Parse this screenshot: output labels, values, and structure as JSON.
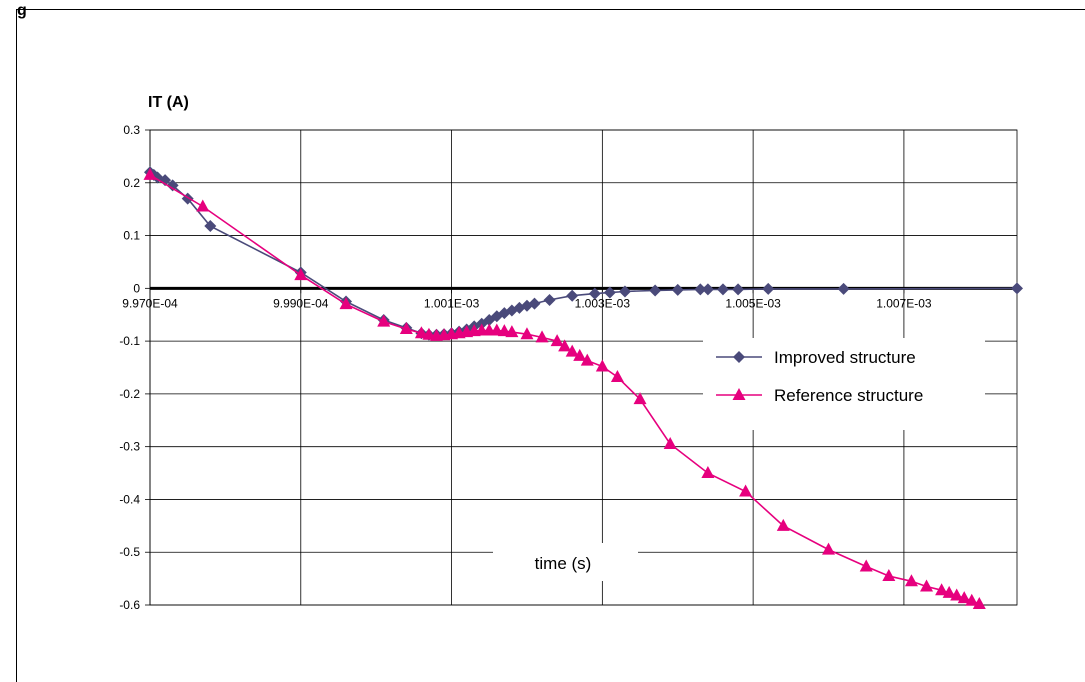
{
  "figure_label": "g",
  "chart_data": {
    "type": "scatter",
    "title": "",
    "ylabel": "IT (A)",
    "xlabel": "time (s)",
    "xlim": [
      0.000997,
      0.0010085
    ],
    "ylim": [
      -0.6,
      0.3
    ],
    "x_ticks": [
      0.000997,
      0.000999,
      0.001001,
      0.001003,
      0.001005,
      0.001007
    ],
    "x_tick_labels": [
      "9.970E-04",
      "9.990E-04",
      "1.001E-03",
      "1.003E-03",
      "1.005E-03",
      "1.007E-03"
    ],
    "y_ticks": [
      0.3,
      0.2,
      0.1,
      0,
      -0.1,
      -0.2,
      -0.3,
      -0.4,
      -0.5,
      -0.6
    ],
    "y_tick_labels": [
      "0.3",
      "0.2",
      "0.1",
      "0",
      "-0.1",
      "-0.2",
      "-0.3",
      "-0.4",
      "-0.5",
      "-0.6"
    ],
    "grid": true,
    "legend_position": "right",
    "series": [
      {
        "name": "Improved structure",
        "color": "#4a4a7a",
        "marker": "diamond",
        "x": [
          0.000997,
          0.00099705,
          0.0009971,
          0.0009972,
          0.0009973,
          0.0009975,
          0.0009978,
          0.000999,
          0.0009996,
          0.0010001,
          0.0010004,
          0.0010006,
          0.0010007,
          0.0010008,
          0.0010009,
          0.001001,
          0.0010011,
          0.0010012,
          0.0010013,
          0.0010014,
          0.0010015,
          0.0010016,
          0.0010017,
          0.0010018,
          0.0010019,
          0.001002,
          0.0010021,
          0.0010023,
          0.0010026,
          0.0010029,
          0.0010031,
          0.0010033,
          0.0010037,
          0.001004,
          0.0010043,
          0.0010044,
          0.0010046,
          0.0010048,
          0.0010052,
          0.0010062,
          0.0010085
        ],
        "y": [
          0.22,
          0.215,
          0.21,
          0.205,
          0.195,
          0.17,
          0.118,
          0.03,
          -0.025,
          -0.06,
          -0.075,
          -0.085,
          -0.088,
          -0.088,
          -0.087,
          -0.085,
          -0.082,
          -0.078,
          -0.072,
          -0.067,
          -0.06,
          -0.053,
          -0.047,
          -0.042,
          -0.037,
          -0.033,
          -0.029,
          -0.022,
          -0.014,
          -0.01,
          -0.008,
          -0.006,
          -0.004,
          -0.003,
          -0.002,
          -0.002,
          -0.002,
          -0.002,
          -0.001,
          -0.001,
          0.0
        ]
      },
      {
        "name": "Reference structure",
        "color": "#e6007e",
        "marker": "triangle",
        "x": [
          0.000997,
          0.0009977,
          0.000999,
          0.0009996,
          0.0010001,
          0.0010004,
          0.0010006,
          0.0010007,
          0.0010008,
          0.0010009,
          0.001001,
          0.0010011,
          0.0010012,
          0.0010013,
          0.0010014,
          0.0010015,
          0.0010016,
          0.0010017,
          0.0010018,
          0.001002,
          0.0010022,
          0.0010024,
          0.0010025,
          0.0010026,
          0.0010027,
          0.0010028,
          0.001003,
          0.0010032,
          0.0010035,
          0.0010039,
          0.0010044,
          0.0010049,
          0.0010054,
          0.001006,
          0.0010065,
          0.0010068,
          0.0010071,
          0.0010073,
          0.0010075,
          0.0010076,
          0.0010077,
          0.0010078,
          0.0010079,
          0.001008
        ],
        "y": [
          0.215,
          0.155,
          0.025,
          -0.03,
          -0.063,
          -0.077,
          -0.085,
          -0.088,
          -0.09,
          -0.089,
          -0.087,
          -0.085,
          -0.083,
          -0.081,
          -0.08,
          -0.08,
          -0.08,
          -0.081,
          -0.083,
          -0.087,
          -0.093,
          -0.1,
          -0.11,
          -0.12,
          -0.128,
          -0.137,
          -0.148,
          -0.168,
          -0.21,
          -0.295,
          -0.35,
          -0.385,
          -0.45,
          -0.495,
          -0.527,
          -0.545,
          -0.555,
          -0.565,
          -0.572,
          -0.577,
          -0.582,
          -0.587,
          -0.592,
          -0.598
        ]
      }
    ]
  }
}
